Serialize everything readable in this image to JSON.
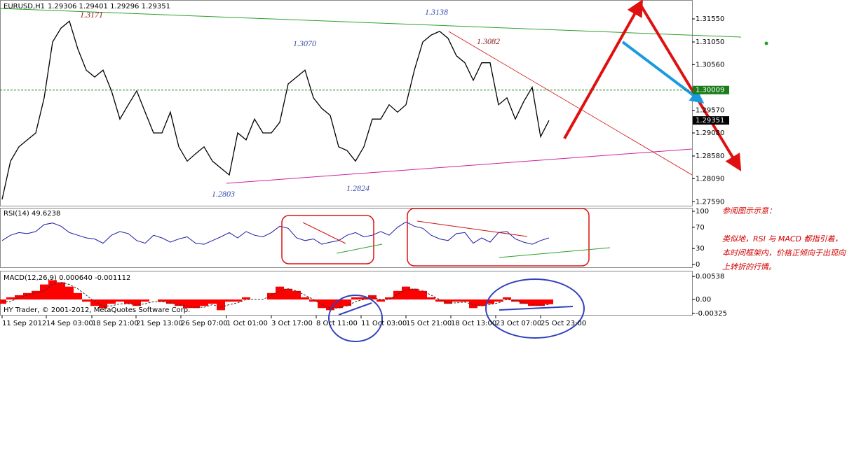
{
  "chart_data": [
    {
      "type": "line",
      "title": "EURUSD,H1",
      "subtitle": "1.29306 1.29401 1.29296 1.29351",
      "x": [
        0,
        12,
        24,
        36,
        48,
        60,
        72,
        84,
        96,
        108,
        120,
        132,
        144,
        156,
        168,
        180,
        192,
        204,
        216,
        228,
        240,
        252,
        264,
        276,
        288,
        300,
        312,
        324,
        336,
        348,
        360,
        372,
        384,
        396,
        408,
        420,
        432,
        444,
        456,
        468,
        480,
        492,
        504,
        516,
        528,
        540,
        552,
        564,
        576,
        588,
        600,
        612,
        624,
        636,
        648,
        660,
        672,
        684,
        696,
        708,
        720,
        732,
        744,
        756,
        768,
        780
      ],
      "values": [
        1.2764,
        1.2847,
        1.2878,
        1.2893,
        1.2908,
        1.2984,
        1.3105,
        1.3135,
        1.315,
        1.309,
        1.3044,
        1.3029,
        1.3044,
        1.2999,
        1.2938,
        1.2969,
        1.2999,
        1.2953,
        1.2908,
        1.2908,
        1.2953,
        1.2878,
        1.2847,
        1.2863,
        1.2878,
        1.2847,
        1.2832,
        1.2817,
        1.2908,
        1.2893,
        1.2938,
        1.2908,
        1.2908,
        1.2931,
        1.3014,
        1.3029,
        1.3044,
        1.2984,
        1.2961,
        1.2946,
        1.2878,
        1.287,
        1.2847,
        1.2878,
        1.2938,
        1.2938,
        1.2969,
        1.2953,
        1.2969,
        1.3044,
        1.3105,
        1.312,
        1.3128,
        1.3113,
        1.3075,
        1.306,
        1.3022,
        1.306,
        1.306,
        1.2969,
        1.2984,
        1.2938,
        1.2976,
        1.3007,
        1.29,
        1.2935
      ],
      "color": "#000000",
      "xlim": [
        0,
        984
      ],
      "ylim": [
        1.27489,
        1.31959
      ],
      "yticks": [
        {
          "value": 1.3155,
          "label": "1.31550"
        },
        {
          "value": 1.3105,
          "label": "1.31050"
        },
        {
          "value": 1.3056,
          "label": "1.30560"
        },
        {
          "value": 1.2957,
          "label": "1.29570"
        },
        {
          "value": 1.2908,
          "label": "1.29080"
        },
        {
          "value": 1.2858,
          "label": "1.28580"
        },
        {
          "value": 1.2809,
          "label": "1.28090"
        },
        {
          "value": 1.2759,
          "label": "1.27590"
        }
      ],
      "xticks": [
        {
          "value": 0,
          "label": "11 Sep 2012"
        },
        {
          "value": 63,
          "label": "14 Sep 03:00"
        },
        {
          "value": 128,
          "label": "18 Sep 21:00"
        },
        {
          "value": 191,
          "label": "21 Sep 13:00"
        },
        {
          "value": 255,
          "label": "26 Sep 07:00"
        },
        {
          "value": 320,
          "label": "1 Oct 01:00"
        },
        {
          "value": 384,
          "label": "3 Oct 17:00"
        },
        {
          "value": 448,
          "label": "8 Oct 11:00"
        },
        {
          "value": 512,
          "label": "11 Oct 03:00"
        },
        {
          "value": 576,
          "label": "15 Oct 21:00"
        },
        {
          "value": 640,
          "label": "18 Oct 13:00"
        },
        {
          "value": 704,
          "label": "23 Oct 07:00"
        },
        {
          "value": 768,
          "label": "25 Oct 23:00"
        }
      ],
      "level": 1.30009,
      "last_price": 1.29351,
      "annotations": [
        "1.3171",
        "1.3070",
        "1.3138",
        "1.3082",
        "1.2803",
        "1.2824"
      ]
    },
    {
      "type": "line",
      "title": "RSI(14) 49.6238",
      "values": [
        45,
        55,
        60,
        58,
        62,
        75,
        78,
        72,
        60,
        55,
        50,
        48,
        40,
        55,
        62,
        58,
        45,
        40,
        55,
        50,
        42,
        48,
        52,
        40,
        38,
        45,
        52,
        60,
        50,
        62,
        55,
        52,
        60,
        72,
        68,
        50,
        45,
        48,
        38,
        42,
        45,
        55,
        60,
        52,
        55,
        62,
        55,
        70,
        80,
        72,
        68,
        55,
        48,
        45,
        58,
        60,
        40,
        50,
        42,
        60,
        62,
        48,
        42,
        38,
        45,
        50
      ],
      "color": "#1a1aa6",
      "ylim": [
        -6.6,
        106.6
      ],
      "yticks": [
        0,
        30,
        70,
        100
      ]
    },
    {
      "type": "macd",
      "title": "MACD(12,26,9) 0.000640 -0.001112",
      "values": [
        -0.001,
        0.0005,
        0.001,
        0.0015,
        0.002,
        0.0035,
        0.0045,
        0.004,
        0.003,
        0.0015,
        -0.0005,
        -0.0015,
        -0.002,
        -0.001,
        -0.0005,
        -0.001,
        -0.0015,
        -0.0005,
        0.0,
        -0.0005,
        -0.001,
        -0.0015,
        -0.002,
        -0.002,
        -0.0015,
        -0.001,
        -0.0025,
        -0.0005,
        -0.0005,
        0.0005,
        0.0,
        0.0,
        0.0015,
        0.003,
        0.0025,
        0.002,
        0.0005,
        -0.0005,
        -0.002,
        -0.0025,
        -0.002,
        -0.0015,
        0.0005,
        0.0005,
        0.001,
        -0.0005,
        0.0005,
        0.002,
        0.003,
        0.0025,
        0.002,
        0.0005,
        -0.0005,
        -0.001,
        -0.0005,
        -0.0005,
        -0.002,
        -0.0015,
        -0.001,
        -0.0005,
        0.0005,
        -0.0005,
        -0.001,
        -0.0015,
        -0.0015,
        -0.0011
      ],
      "signal": [
        -0.0005,
        -0.0005,
        0.0005,
        0.001,
        0.0015,
        0.002,
        0.0035,
        0.004,
        0.0035,
        0.0025,
        0.001,
        -0.0005,
        -0.0015,
        -0.0015,
        -0.001,
        -0.001,
        -0.0012,
        -0.001,
        -0.0005,
        -0.0005,
        -0.0008,
        -0.0012,
        -0.0015,
        -0.0018,
        -0.0018,
        -0.0012,
        -0.0018,
        -0.0012,
        -0.0008,
        0.0,
        0.0,
        0.0,
        0.001,
        0.002,
        0.0025,
        0.002,
        0.001,
        0.0,
        -0.0012,
        -0.002,
        -0.002,
        -0.0015,
        -0.0005,
        0.0,
        0.0005,
        0.0,
        0.0,
        0.0012,
        0.0022,
        0.0025,
        0.002,
        0.001,
        0.0,
        -0.0008,
        -0.0008,
        -0.0006,
        -0.0012,
        -0.0015,
        -0.0012,
        -0.0008,
        0.0,
        -0.0003,
        -0.0008,
        -0.0012,
        -0.0013,
        -0.0012
      ],
      "color": "#ff0000",
      "signal_color": "#333333",
      "ylim": [
        -0.00375,
        0.0067
      ],
      "yticks": [
        {
          "value": 0.00538,
          "label": "0.00538"
        },
        {
          "value": 0,
          "label": "0.00"
        },
        {
          "value": -0.00325,
          "label": "-0.00325"
        }
      ]
    }
  ],
  "footer": "HY Trader, © 2001-2012, MetaQuotes Software Corp.",
  "notes": [
    "参阅图示示意：",
    "类似地，RSI 与 MACD 都指引着，",
    "本时间框架内，价格正倾向于出现向",
    "上转折的行情。"
  ]
}
